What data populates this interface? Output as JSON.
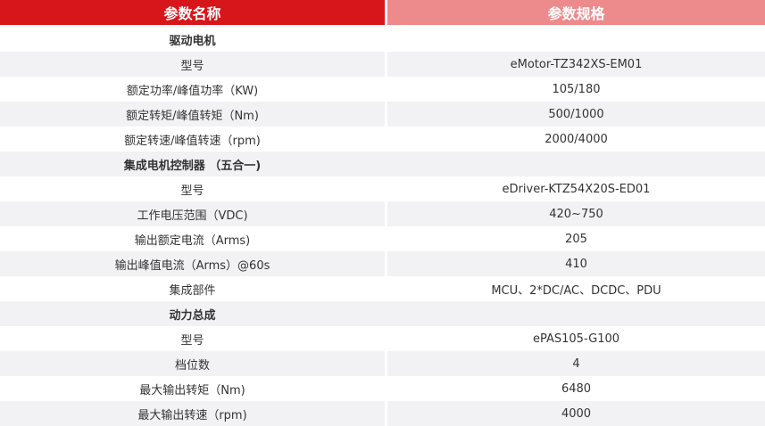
{
  "header": {
    "name_label": "参数名称",
    "spec_label": "参数规格",
    "colors": {
      "left": "#d7161b",
      "right": "#ec8a8c",
      "stripe": "#f2f2f4"
    }
  },
  "rows": [
    {
      "type": "section",
      "name": "驱动电机",
      "value": ""
    },
    {
      "type": "item",
      "name": "型号",
      "value": "eMotor-TZ342XS-EM01"
    },
    {
      "type": "item",
      "name": "额定功率/峰值功率（KW)",
      "value": "105/180"
    },
    {
      "type": "item",
      "name": "额定转矩/峰值转矩（Nm)",
      "value": "500/1000"
    },
    {
      "type": "item",
      "name": "额定转速/峰值转速（rpm)",
      "value": "2000/4000"
    },
    {
      "type": "section",
      "name": "集成电机控制器 （五合一)",
      "value": ""
    },
    {
      "type": "item",
      "name": "型号",
      "value": "eDriver-KTZ54X20S-ED01"
    },
    {
      "type": "item",
      "name": "工作电压范围（VDC)",
      "value": "420~750"
    },
    {
      "type": "item",
      "name": "输出额定电流（Arms)",
      "value": "205"
    },
    {
      "type": "item",
      "name": "输出峰值电流（Arms）@60s",
      "value": "410"
    },
    {
      "type": "item",
      "name": "集成部件",
      "value": "MCU、2*DC/AC、DCDC、PDU"
    },
    {
      "type": "section",
      "name": "动力总成",
      "value": ""
    },
    {
      "type": "item",
      "name": "型号",
      "value": "ePAS105-G100"
    },
    {
      "type": "item",
      "name": "档位数",
      "value": "4"
    },
    {
      "type": "item",
      "name": "最大输出转矩（Nm)",
      "value": "6480"
    },
    {
      "type": "item",
      "name": "最大输出转速（rpm)",
      "value": "4000"
    }
  ]
}
